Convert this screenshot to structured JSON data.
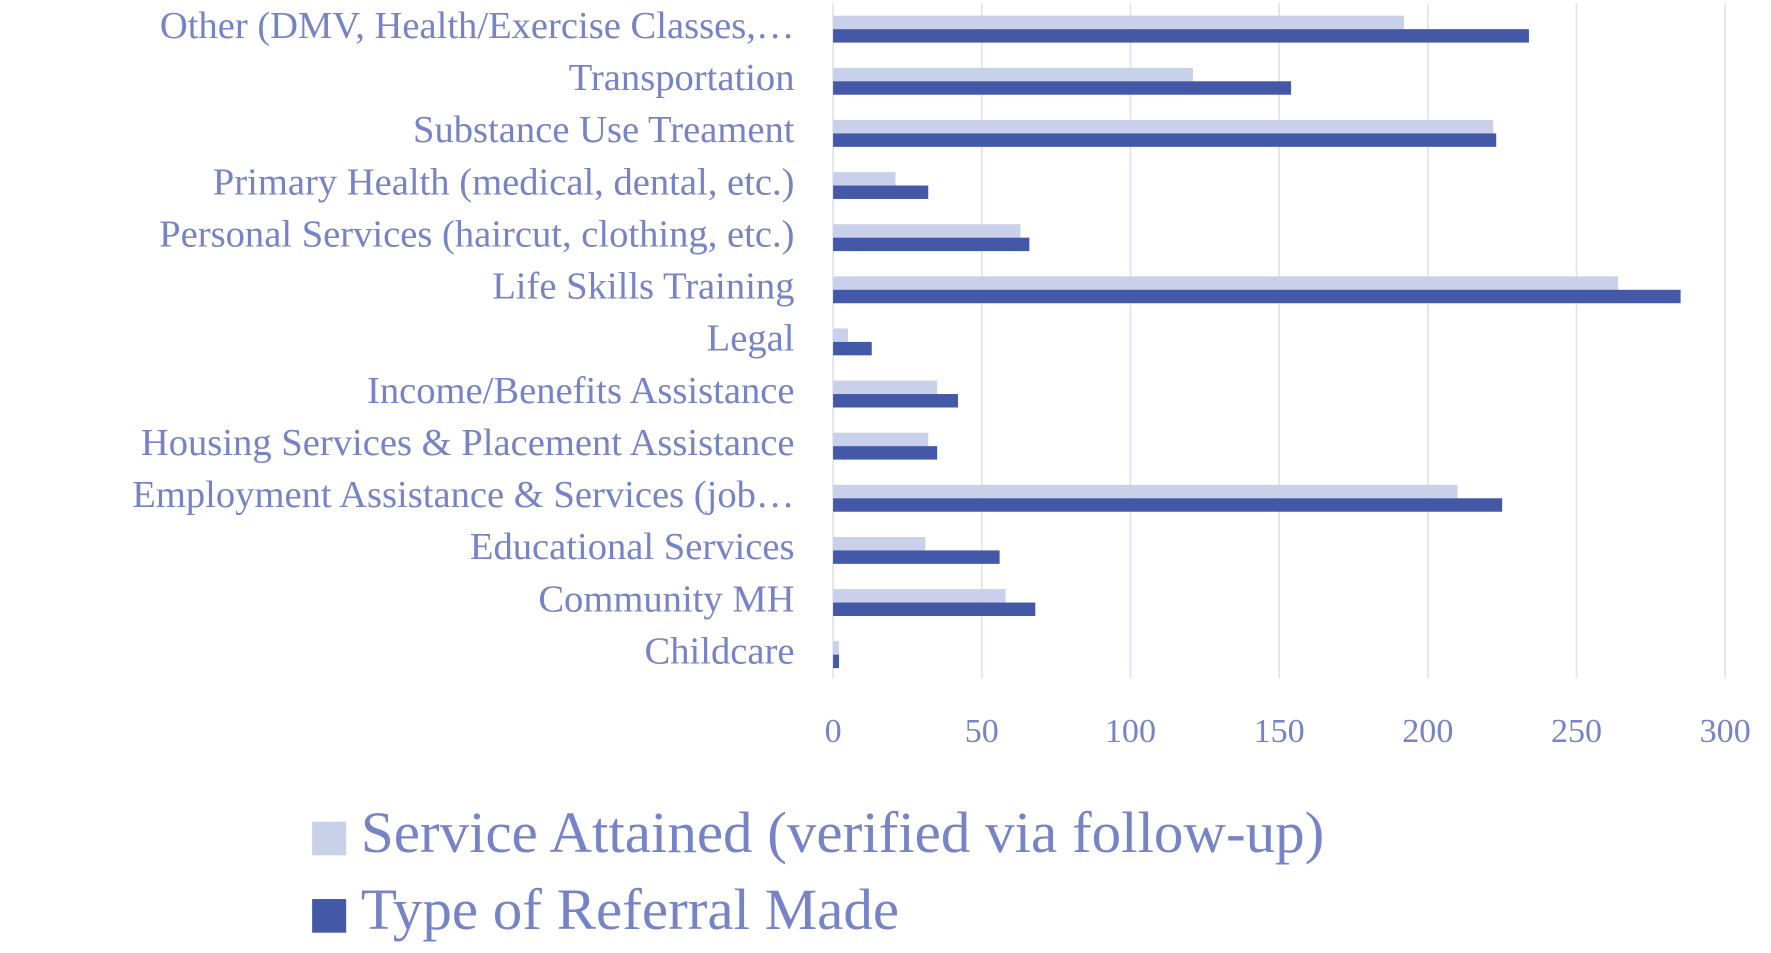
{
  "chart_data": {
    "type": "hbar",
    "categories": [
      "Other (DMV, Health/Exercise Classes,…",
      "Transportation",
      "Substance Use Treament",
      "Primary Health (medical, dental, etc.)",
      "Personal Services (haircut, clothing, etc.)",
      "Life Skills Training",
      "Legal",
      "Income/Benefits Assistance",
      "Housing Services & Placement Assistance",
      "Employment Assistance & Services (job…",
      "Educational Services",
      "Community MH",
      "Childcare"
    ],
    "series": [
      {
        "name": "Service Attained (verified via follow-up)",
        "color": "#c9d0ea",
        "values": [
          192,
          121,
          222,
          21,
          63,
          264,
          5,
          35,
          32,
          210,
          31,
          58,
          2
        ]
      },
      {
        "name": "Type of Referral Made",
        "color": "#4458a8",
        "values": [
          234,
          154,
          223,
          32,
          66,
          285,
          13,
          42,
          35,
          225,
          56,
          68,
          2
        ]
      }
    ],
    "xlim": [
      0,
      300
    ],
    "xticks": [
      0,
      50,
      100,
      150,
      200,
      250,
      300
    ],
    "grid": true,
    "legend": "bottom"
  }
}
